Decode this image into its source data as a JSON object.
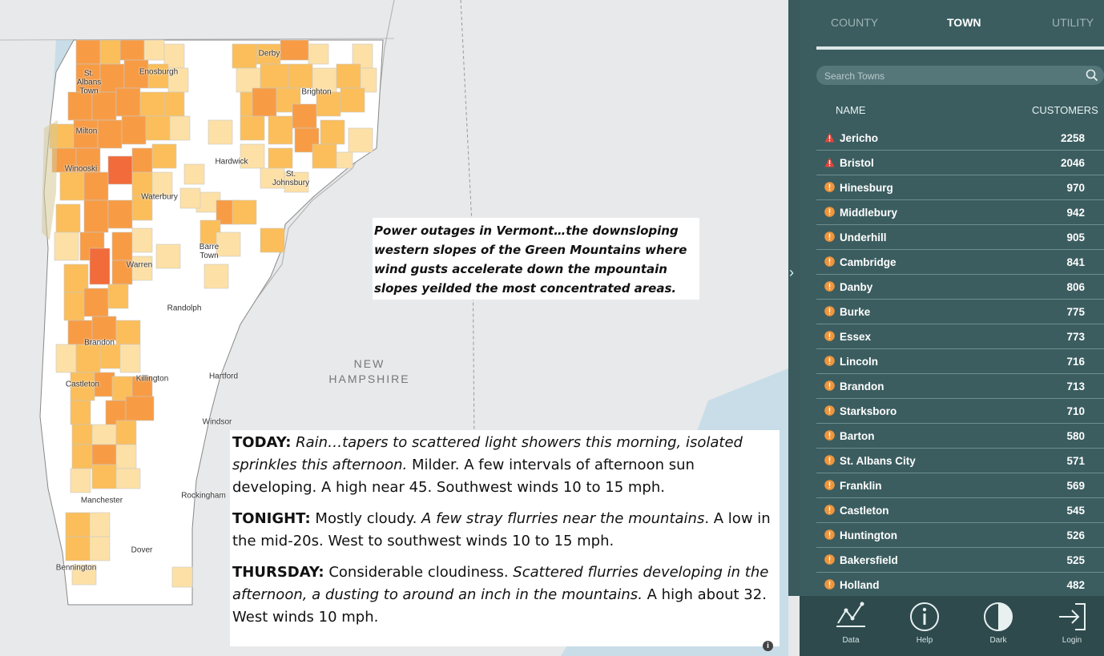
{
  "map": {
    "places": [
      {
        "id": "derby",
        "label": "Derby"
      },
      {
        "id": "st-albans-town",
        "label": "St.\nAlbans\nTown"
      },
      {
        "id": "enosburgh",
        "label": "Enosburgh"
      },
      {
        "id": "brighton",
        "label": "Brighton"
      },
      {
        "id": "milton",
        "label": "Milton"
      },
      {
        "id": "hardwick",
        "label": "Hardwick"
      },
      {
        "id": "winooski",
        "label": "Winooski"
      },
      {
        "id": "st-johnsbury",
        "label": "St.\nJohnsbury"
      },
      {
        "id": "waterbury",
        "label": "Waterbury"
      },
      {
        "id": "barre-town",
        "label": "Barre\nTown"
      },
      {
        "id": "warren",
        "label": "Warren"
      },
      {
        "id": "randolph",
        "label": "Randolph"
      },
      {
        "id": "brandon",
        "label": "Brandon"
      },
      {
        "id": "killington",
        "label": "Killington"
      },
      {
        "id": "hartford",
        "label": "Hartford"
      },
      {
        "id": "castleton",
        "label": "Castleton"
      },
      {
        "id": "windsor",
        "label": "Windsor"
      },
      {
        "id": "manchester",
        "label": "Manchester"
      },
      {
        "id": "rockingham",
        "label": "Rockingham"
      },
      {
        "id": "dover",
        "label": "Dover"
      },
      {
        "id": "bennington",
        "label": "Bennington"
      }
    ],
    "state_label": "NEW\nHAMPSHIRE",
    "colors": {
      "high": "#f26b3a",
      "med": "#f79c45",
      "low": "#fbbe5a",
      "vlow": "#fde0a6",
      "none": "#ffffff"
    }
  },
  "callout_top": "Power outages in Vermont…the downsloping western slopes of the Green Mountains where wind gusts accelerate down the mpountain slopes yeilded the most concentrated areas.",
  "forecast": [
    {
      "label": "TODAY:",
      "italic1": "Rain…tapers to scattered light showers this morning, isolated sprinkles this afternoon.",
      "normal1": " Milder. A few intervals of afternoon sun developing. A high near 45. Southwest winds 10 to 15 mph.",
      "italic2": "",
      "normal2": ""
    },
    {
      "label": "TONIGHT:",
      "italic1": "",
      "normal1": " Mostly cloudy. ",
      "italic2": "A few stray flurries near the mountains",
      "normal2": ". A low in the mid-20s. West to southwest winds 10 to 15 mph."
    },
    {
      "label": "THURSDAY:",
      "italic1": "",
      "normal1": " Considerable cloudiness. ",
      "italic2": "Scattered flurries developing in the afternoon, a dusting to around an inch in the mountains.",
      "normal2": " A high about 32. West winds 10 mph."
    }
  ],
  "panel": {
    "tabs": [
      "COUNTY",
      "TOWN",
      "UTILITY"
    ],
    "active_tab": "TOWN",
    "search_placeholder": "Search Towns",
    "col_name": "NAME",
    "col_customers": "CUSTOMERS",
    "rows": [
      {
        "name": "Jericho",
        "customers": "2258",
        "level": "red"
      },
      {
        "name": "Bristol",
        "customers": "2046",
        "level": "red"
      },
      {
        "name": "Hinesburg",
        "customers": "970",
        "level": "orange"
      },
      {
        "name": "Middlebury",
        "customers": "942",
        "level": "orange"
      },
      {
        "name": "Underhill",
        "customers": "905",
        "level": "orange"
      },
      {
        "name": "Cambridge",
        "customers": "841",
        "level": "orange"
      },
      {
        "name": "Danby",
        "customers": "806",
        "level": "orange"
      },
      {
        "name": "Burke",
        "customers": "775",
        "level": "orange"
      },
      {
        "name": "Essex",
        "customers": "773",
        "level": "orange"
      },
      {
        "name": "Lincoln",
        "customers": "716",
        "level": "orange"
      },
      {
        "name": "Brandon",
        "customers": "713",
        "level": "orange"
      },
      {
        "name": "Starksboro",
        "customers": "710",
        "level": "orange"
      },
      {
        "name": "Barton",
        "customers": "580",
        "level": "orange"
      },
      {
        "name": "St. Albans City",
        "customers": "571",
        "level": "orange"
      },
      {
        "name": "Franklin",
        "customers": "569",
        "level": "orange"
      },
      {
        "name": "Castleton",
        "customers": "545",
        "level": "orange"
      },
      {
        "name": "Huntington",
        "customers": "526",
        "level": "orange"
      },
      {
        "name": "Bakersfield",
        "customers": "525",
        "level": "orange"
      },
      {
        "name": "Holland",
        "customers": "482",
        "level": "orange"
      }
    ],
    "status_colors": {
      "red": "#e0443a",
      "orange": "#f0953a"
    }
  },
  "footer": {
    "data": "Data",
    "help": "Help",
    "dark": "Dark",
    "login": "Login"
  }
}
